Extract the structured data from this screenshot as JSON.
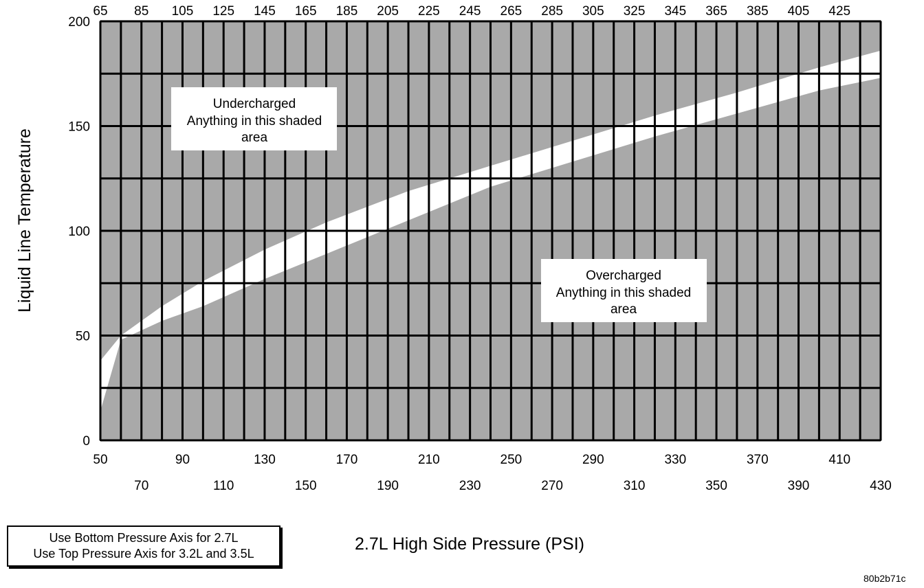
{
  "chart_data": {
    "type": "area",
    "ylabel": "Liquid Line Temperature",
    "xlabel": "2.7L High Side Pressure (PSI)",
    "y_ticks": [
      "200",
      "150",
      "100",
      "50",
      "0"
    ],
    "ylim": [
      0,
      200
    ],
    "x_bottom_range": [
      50,
      430
    ],
    "x_top_range": [
      65,
      445
    ],
    "x_bottom_ticks_row1": [
      "50",
      "90",
      "130",
      "170",
      "210",
      "250",
      "290",
      "330",
      "370",
      "410"
    ],
    "x_bottom_ticks_row2": [
      "70",
      "110",
      "150",
      "190",
      "230",
      "270",
      "310",
      "350",
      "390",
      "430"
    ],
    "x_top_ticks": [
      "65",
      "85",
      "105",
      "125",
      "145",
      "165",
      "185",
      "205",
      "225",
      "245",
      "265",
      "285",
      "305",
      "325",
      "345",
      "365",
      "385",
      "405",
      "425"
    ],
    "normal_band_upper": {
      "x": [
        50,
        60,
        80,
        100,
        130,
        160,
        200,
        240,
        280,
        320,
        360,
        400,
        430
      ],
      "y": [
        38,
        50,
        64,
        76,
        91,
        104,
        119,
        131,
        143,
        155,
        166,
        178,
        186
      ]
    },
    "normal_band_lower": {
      "x": [
        50,
        60,
        80,
        100,
        130,
        160,
        200,
        240,
        280,
        320,
        360,
        400,
        430
      ],
      "y": [
        14,
        48,
        57,
        64,
        77,
        89,
        105,
        121,
        133,
        145,
        156,
        167,
        173
      ]
    },
    "regions": [
      {
        "title": "Undercharged",
        "text": "Anything in this shaded",
        "text2": "area"
      },
      {
        "title": "Overcharged",
        "text": "Anything in this shaded",
        "text2": "area"
      }
    ],
    "grid": true
  },
  "legend": {
    "line1": "Use Bottom Pressure Axis for 2.7L",
    "line2": "Use Top Pressure Axis for 3.2L and 3.5L"
  },
  "footer_code": "80b2b71c",
  "colors": {
    "shade": "#a9a9a9",
    "band": "#ffffff",
    "grid": "#000000"
  }
}
